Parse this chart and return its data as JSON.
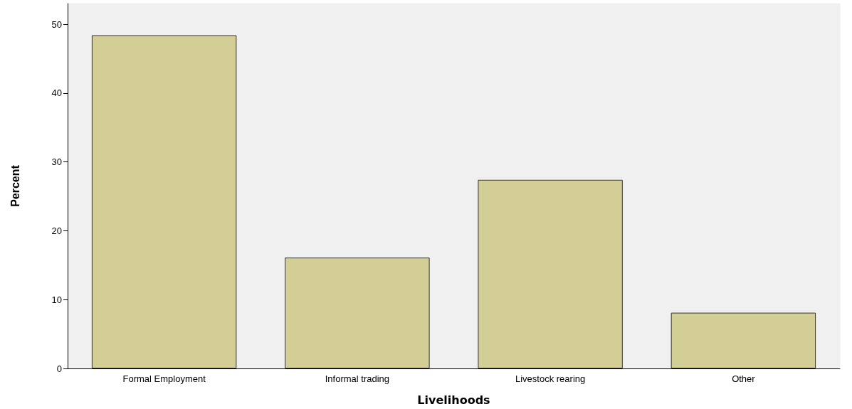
{
  "chart_data": {
    "type": "bar",
    "xlabel": "Livelihoods",
    "ylabel": "Percent",
    "categories": [
      "Formal Employment",
      "Informal trading",
      "Livestock rearing",
      "Other"
    ],
    "values": [
      48.4,
      16.1,
      27.4,
      8.1
    ],
    "color": "#d3cd96",
    "ylim": [
      0,
      53
    ],
    "yticks": [
      0,
      10,
      20,
      30,
      40,
      50
    ],
    "grid": false
  }
}
